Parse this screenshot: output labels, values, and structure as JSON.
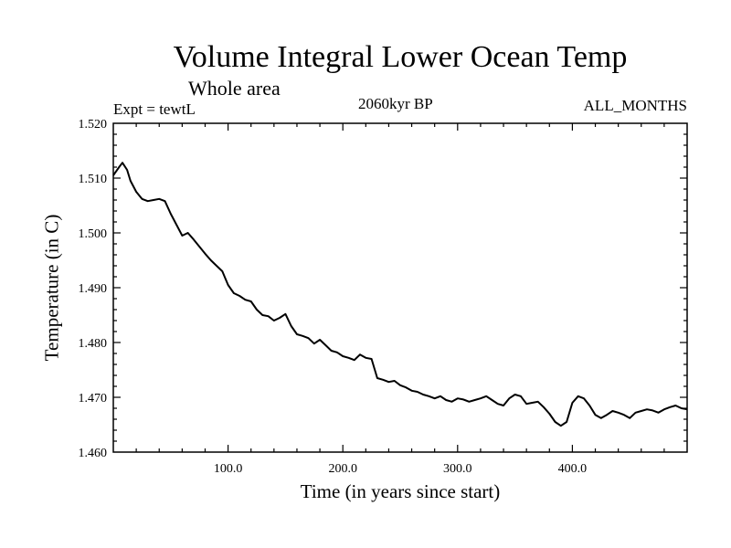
{
  "chart_data": {
    "type": "line",
    "title": "Volume Integral Lower Ocean Temp",
    "subtitle": "Whole area",
    "expt_label": "Expt = tewtL",
    "center_label": "2060kyr BP",
    "months_label": "ALL_MONTHS",
    "xlabel": "Time (in years since start)",
    "ylabel": "Temperature (in C)",
    "xlim": [
      0,
      500
    ],
    "ylim": [
      1.46,
      1.52
    ],
    "xticks": [
      100,
      200,
      300,
      400
    ],
    "xtick_labels": [
      "100.0",
      "200.0",
      "300.0",
      "400.0"
    ],
    "yticks": [
      1.46,
      1.47,
      1.48,
      1.49,
      1.5,
      1.51,
      1.52
    ],
    "ytick_labels": [
      "1.460",
      "1.470",
      "1.480",
      "1.490",
      "1.500",
      "1.510",
      "1.520"
    ],
    "series": [
      {
        "name": "Volume Integral Lower Ocean Temp",
        "x": [
          0,
          5,
          8,
          12,
          15,
          20,
          25,
          30,
          35,
          40,
          45,
          50,
          55,
          60,
          65,
          70,
          75,
          80,
          85,
          90,
          95,
          100,
          105,
          110,
          115,
          120,
          125,
          130,
          135,
          140,
          145,
          150,
          155,
          160,
          165,
          170,
          175,
          180,
          185,
          190,
          195,
          200,
          205,
          210,
          215,
          220,
          225,
          230,
          235,
          240,
          245,
          250,
          255,
          260,
          265,
          270,
          275,
          280,
          285,
          290,
          295,
          300,
          305,
          310,
          315,
          320,
          325,
          330,
          335,
          340,
          345,
          350,
          355,
          360,
          365,
          370,
          375,
          380,
          385,
          390,
          395,
          400,
          405,
          410,
          415,
          420,
          425,
          430,
          435,
          440,
          445,
          450,
          455,
          460,
          465,
          470,
          475,
          480,
          485,
          490,
          495,
          500
        ],
        "values": [
          1.5105,
          1.512,
          1.5128,
          1.5115,
          1.5095,
          1.5075,
          1.5062,
          1.5058,
          1.506,
          1.5062,
          1.5058,
          1.5035,
          1.5015,
          1.4995,
          1.5,
          1.4988,
          1.4975,
          1.4962,
          1.495,
          1.494,
          1.493,
          1.4905,
          1.489,
          1.4885,
          1.4878,
          1.4875,
          1.486,
          1.485,
          1.4848,
          1.484,
          1.4845,
          1.4852,
          1.483,
          1.4815,
          1.4812,
          1.4808,
          1.4798,
          1.4805,
          1.4795,
          1.4785,
          1.4782,
          1.4775,
          1.4772,
          1.4768,
          1.4778,
          1.4772,
          1.477,
          1.4735,
          1.4732,
          1.4728,
          1.473,
          1.4722,
          1.4718,
          1.4712,
          1.471,
          1.4705,
          1.4702,
          1.4698,
          1.4702,
          1.4695,
          1.4692,
          1.4698,
          1.4696,
          1.4692,
          1.4695,
          1.4698,
          1.4702,
          1.4695,
          1.4688,
          1.4685,
          1.4698,
          1.4705,
          1.4702,
          1.4688,
          1.469,
          1.4692,
          1.4682,
          1.467,
          1.4655,
          1.4648,
          1.4655,
          1.469,
          1.4702,
          1.4698,
          1.4685,
          1.4668,
          1.4662,
          1.4668,
          1.4675,
          1.4672,
          1.4668,
          1.4662,
          1.4672,
          1.4675,
          1.4678,
          1.4676,
          1.4672,
          1.4678,
          1.4682,
          1.4685,
          1.468,
          1.4678
        ]
      }
    ]
  }
}
